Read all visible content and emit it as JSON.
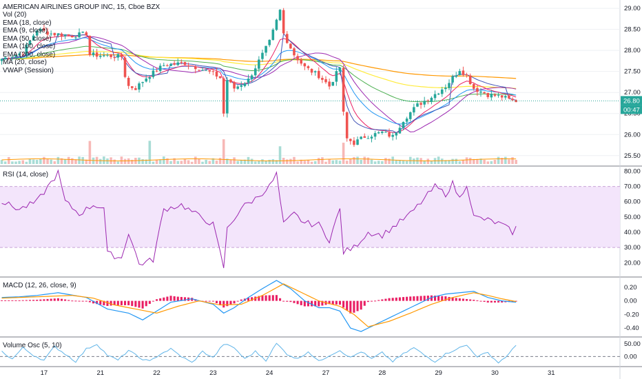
{
  "chart_data": {
    "type": "candlestick",
    "symbol_title": "AMERICAN AIRLINES GROUP INC, 15, Cboe BZX",
    "colors": {
      "up": "#26a69a",
      "down": "#ef5350",
      "ema9": "#e91e63",
      "ema18": "#2196f3",
      "ema50": "#4caf50",
      "ema100": "#ffeb3b",
      "ema200": "#ff9800",
      "ma20": "#9c27b0",
      "vwap": "#3f51b5",
      "rsi": "#9c27b0",
      "rsi_band": "#e9d5f7",
      "macd": "#2196f3",
      "signal": "#ff9800",
      "hist": "#e91e63",
      "volosc": "#5fb4e8",
      "last_price": "#26a69a"
    },
    "main": {
      "legend": [
        "Vol (20)",
        "EMA (18, close)",
        "EMA (9, close)",
        "EMA (50, close)",
        "EMA (100, close)",
        "EMA (200, close)",
        "MA (20, close)",
        "VWAP (Session)"
      ],
      "y_ticks": [
        "29.00",
        "28.50",
        "28.00",
        "27.50",
        "27.00",
        "26.50",
        "26.00",
        "25.50"
      ],
      "ylim": [
        25.3,
        29.1
      ],
      "last_price": "26.80",
      "countdown": "00:47",
      "price_anchors": [
        [
          0,
          27.8
        ],
        [
          6,
          27.95
        ],
        [
          10,
          28.5
        ],
        [
          14,
          28.4
        ],
        [
          20,
          28.35
        ],
        [
          24,
          28.4
        ],
        [
          25,
          27.9
        ],
        [
          34,
          27.85
        ],
        [
          35,
          27.4
        ],
        [
          36,
          27.15
        ],
        [
          38,
          27.1
        ],
        [
          41,
          27.35
        ],
        [
          46,
          27.65
        ],
        [
          52,
          27.7
        ],
        [
          60,
          27.45
        ],
        [
          62,
          27.35
        ],
        [
          63,
          26.5
        ],
        [
          64,
          27.3
        ],
        [
          66,
          27.1
        ],
        [
          70,
          27.3
        ],
        [
          74,
          27.9
        ],
        [
          76,
          28.2
        ],
        [
          78,
          28.7
        ],
        [
          79,
          28.95
        ],
        [
          80,
          28.4
        ],
        [
          83,
          27.9
        ],
        [
          86,
          27.6
        ],
        [
          90,
          27.4
        ],
        [
          93,
          27.15
        ],
        [
          96,
          27.6
        ],
        [
          97,
          26.5
        ],
        [
          98,
          25.9
        ],
        [
          100,
          25.8
        ],
        [
          103,
          25.95
        ],
        [
          108,
          26.05
        ],
        [
          111,
          25.95
        ],
        [
          114,
          26.35
        ],
        [
          118,
          26.7
        ],
        [
          122,
          26.9
        ],
        [
          126,
          27.15
        ],
        [
          128,
          27.35
        ],
        [
          130,
          27.55
        ],
        [
          132,
          27.4
        ],
        [
          134,
          27.1
        ],
        [
          138,
          26.95
        ],
        [
          142,
          26.9
        ],
        [
          145,
          26.8
        ],
        [
          146,
          26.8
        ]
      ]
    },
    "rsi": {
      "legend": "RSI (14, close)",
      "y_ticks": [
        "80.00",
        "70.00",
        "60.00",
        "50.00",
        "40.00",
        "30.00",
        "20.00"
      ],
      "ylim": [
        12,
        82
      ],
      "band": [
        30,
        70
      ],
      "anchors": [
        [
          0,
          60
        ],
        [
          5,
          55
        ],
        [
          10,
          60
        ],
        [
          16,
          79
        ],
        [
          18,
          60
        ],
        [
          22,
          52
        ],
        [
          26,
          58
        ],
        [
          29,
          56
        ],
        [
          30,
          26
        ],
        [
          34,
          23
        ],
        [
          36,
          40
        ],
        [
          39,
          19
        ],
        [
          43,
          22
        ],
        [
          46,
          55
        ],
        [
          51,
          58
        ],
        [
          55,
          52
        ],
        [
          60,
          45
        ],
        [
          63,
          17
        ],
        [
          64,
          42
        ],
        [
          68,
          56
        ],
        [
          72,
          62
        ],
        [
          76,
          70
        ],
        [
          78,
          78
        ],
        [
          80,
          45
        ],
        [
          83,
          52
        ],
        [
          86,
          46
        ],
        [
          90,
          45
        ],
        [
          93,
          35
        ],
        [
          96,
          55
        ],
        [
          97,
          27
        ],
        [
          100,
          30
        ],
        [
          104,
          40
        ],
        [
          108,
          38
        ],
        [
          112,
          45
        ],
        [
          116,
          52
        ],
        [
          120,
          62
        ],
        [
          123,
          70
        ],
        [
          126,
          65
        ],
        [
          128,
          72
        ],
        [
          130,
          62
        ],
        [
          132,
          72
        ],
        [
          134,
          50
        ],
        [
          138,
          48
        ],
        [
          142,
          45
        ],
        [
          145,
          40
        ],
        [
          146,
          43
        ]
      ]
    },
    "macd": {
      "legend": "MACD (12, 26, close, 9)",
      "y_ticks": [
        "0.20",
        "0.00",
        "-0.20",
        "-0.40"
      ],
      "ylim": [
        -0.5,
        0.32
      ],
      "macd_anchors": [
        [
          0,
          0.05
        ],
        [
          5,
          0.06
        ],
        [
          10,
          0.08
        ],
        [
          16,
          0.12
        ],
        [
          24,
          0.05
        ],
        [
          30,
          -0.12
        ],
        [
          36,
          -0.18
        ],
        [
          40,
          -0.28
        ],
        [
          44,
          -0.15
        ],
        [
          48,
          -0.02
        ],
        [
          54,
          0.03
        ],
        [
          60,
          -0.05
        ],
        [
          63,
          -0.18
        ],
        [
          66,
          -0.1
        ],
        [
          70,
          0.05
        ],
        [
          74,
          0.18
        ],
        [
          78,
          0.3
        ],
        [
          82,
          0.18
        ],
        [
          86,
          0.0
        ],
        [
          90,
          -0.1
        ],
        [
          93,
          -0.1
        ],
        [
          96,
          -0.15
        ],
        [
          99,
          -0.4
        ],
        [
          102,
          -0.45
        ],
        [
          106,
          -0.35
        ],
        [
          110,
          -0.25
        ],
        [
          114,
          -0.15
        ],
        [
          118,
          -0.05
        ],
        [
          122,
          0.05
        ],
        [
          126,
          0.1
        ],
        [
          130,
          0.12
        ],
        [
          134,
          0.14
        ],
        [
          138,
          0.05
        ],
        [
          142,
          0.0
        ],
        [
          146,
          -0.02
        ]
      ],
      "signal_anchors": [
        [
          0,
          0.04
        ],
        [
          10,
          0.06
        ],
        [
          20,
          0.08
        ],
        [
          26,
          0.04
        ],
        [
          32,
          -0.06
        ],
        [
          38,
          -0.12
        ],
        [
          44,
          -0.18
        ],
        [
          50,
          -0.08
        ],
        [
          56,
          0.0
        ],
        [
          62,
          -0.06
        ],
        [
          68,
          -0.05
        ],
        [
          74,
          0.08
        ],
        [
          80,
          0.25
        ],
        [
          84,
          0.15
        ],
        [
          90,
          0.0
        ],
        [
          96,
          -0.08
        ],
        [
          100,
          -0.2
        ],
        [
          104,
          -0.38
        ],
        [
          110,
          -0.3
        ],
        [
          116,
          -0.18
        ],
        [
          122,
          -0.05
        ],
        [
          128,
          0.05
        ],
        [
          134,
          0.12
        ],
        [
          138,
          0.08
        ],
        [
          142,
          0.03
        ],
        [
          146,
          -0.01
        ]
      ]
    },
    "volosc": {
      "legend": "Volume Osc (5, 10)",
      "y_ticks": [
        "50.00",
        "0.00"
      ],
      "ylim": [
        -35,
        70
      ],
      "anchors": [
        [
          0,
          20
        ],
        [
          3,
          -10
        ],
        [
          6,
          35
        ],
        [
          9,
          5
        ],
        [
          12,
          -15
        ],
        [
          15,
          40
        ],
        [
          18,
          10
        ],
        [
          21,
          -20
        ],
        [
          24,
          30
        ],
        [
          27,
          50
        ],
        [
          30,
          5
        ],
        [
          33,
          -15
        ],
        [
          36,
          25
        ],
        [
          39,
          -5
        ],
        [
          42,
          -20
        ],
        [
          45,
          10
        ],
        [
          48,
          30
        ],
        [
          51,
          0
        ],
        [
          54,
          -25
        ],
        [
          57,
          20
        ],
        [
          60,
          -5
        ],
        [
          63,
          50
        ],
        [
          66,
          35
        ],
        [
          69,
          -10
        ],
        [
          72,
          20
        ],
        [
          75,
          -15
        ],
        [
          78,
          52
        ],
        [
          81,
          10
        ],
        [
          84,
          -10
        ],
        [
          87,
          20
        ],
        [
          90,
          -20
        ],
        [
          93,
          5
        ],
        [
          96,
          25
        ],
        [
          99,
          -5
        ],
        [
          102,
          20
        ],
        [
          105,
          -10
        ],
        [
          108,
          15
        ],
        [
          111,
          -20
        ],
        [
          114,
          10
        ],
        [
          117,
          35
        ],
        [
          120,
          5
        ],
        [
          123,
          -20
        ],
        [
          126,
          10
        ],
        [
          129,
          30
        ],
        [
          132,
          45
        ],
        [
          135,
          0
        ],
        [
          138,
          15
        ],
        [
          141,
          -25
        ],
        [
          144,
          10
        ],
        [
          146,
          45
        ]
      ]
    },
    "x_axis": {
      "labels": [
        "17",
        "21",
        "22",
        "23",
        "24",
        "27",
        "28",
        "29",
        "30",
        "31"
      ],
      "label_bar_index": [
        12,
        28,
        44,
        60,
        76,
        92,
        108,
        124,
        140,
        156
      ],
      "bars_visible": 176,
      "last_bar_index": 146
    }
  }
}
